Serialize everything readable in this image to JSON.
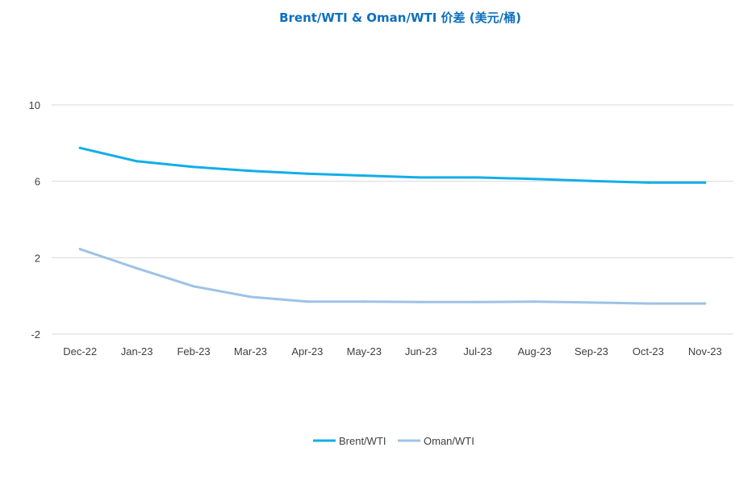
{
  "chart_data": {
    "type": "line",
    "title": "Brent/WTI & Oman/WTI 价差 (美元/桶)",
    "xlabel": "",
    "ylabel": "",
    "categories": [
      "Dec-22",
      "Jan-23",
      "Feb-23",
      "Mar-23",
      "Apr-23",
      "May-23",
      "Jun-23",
      "Jul-23",
      "Aug-23",
      "Sep-23",
      "Oct-23",
      "Nov-23"
    ],
    "ylim": [
      -2,
      10
    ],
    "yticks": [
      -2,
      2,
      6,
      10
    ],
    "grid": true,
    "legend_position": "bottom",
    "series": [
      {
        "name": "Brent/WTI",
        "color": "#12aee8",
        "values": [
          7.75,
          7.05,
          6.75,
          6.55,
          6.4,
          6.3,
          6.2,
          6.2,
          6.12,
          6.02,
          5.93,
          5.93
        ]
      },
      {
        "name": "Oman/WTI",
        "color": "#9dc3e6",
        "values": [
          2.45,
          1.45,
          0.5,
          -0.05,
          -0.3,
          -0.3,
          -0.32,
          -0.32,
          -0.3,
          -0.35,
          -0.4,
          -0.4
        ]
      }
    ],
    "colors": {
      "title": "#0e6fbe",
      "grid": "#d9d9d9",
      "tick_text": "#404040"
    }
  }
}
